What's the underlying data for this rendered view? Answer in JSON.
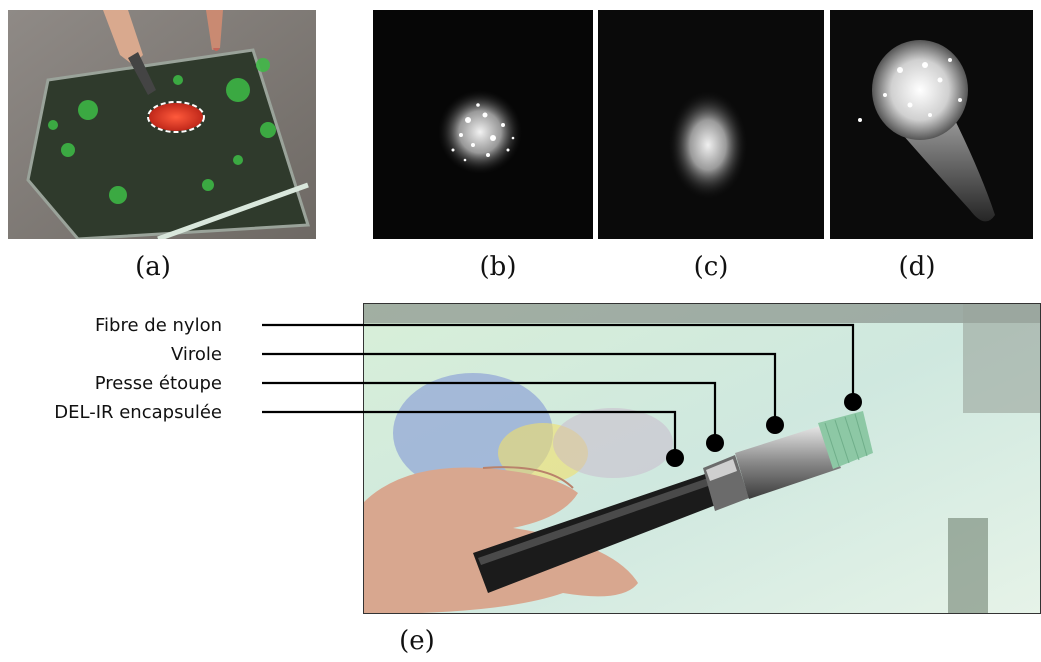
{
  "figure": {
    "captions": {
      "a": "(a)",
      "b": "(b)",
      "c": "(c)",
      "d": "(d)",
      "e": "(e)"
    },
    "labels": {
      "fibre": "Fibre de nylon",
      "virole": "Virole",
      "presse": "Presse étoupe",
      "del": "DEL-IR encapsulée"
    }
  }
}
